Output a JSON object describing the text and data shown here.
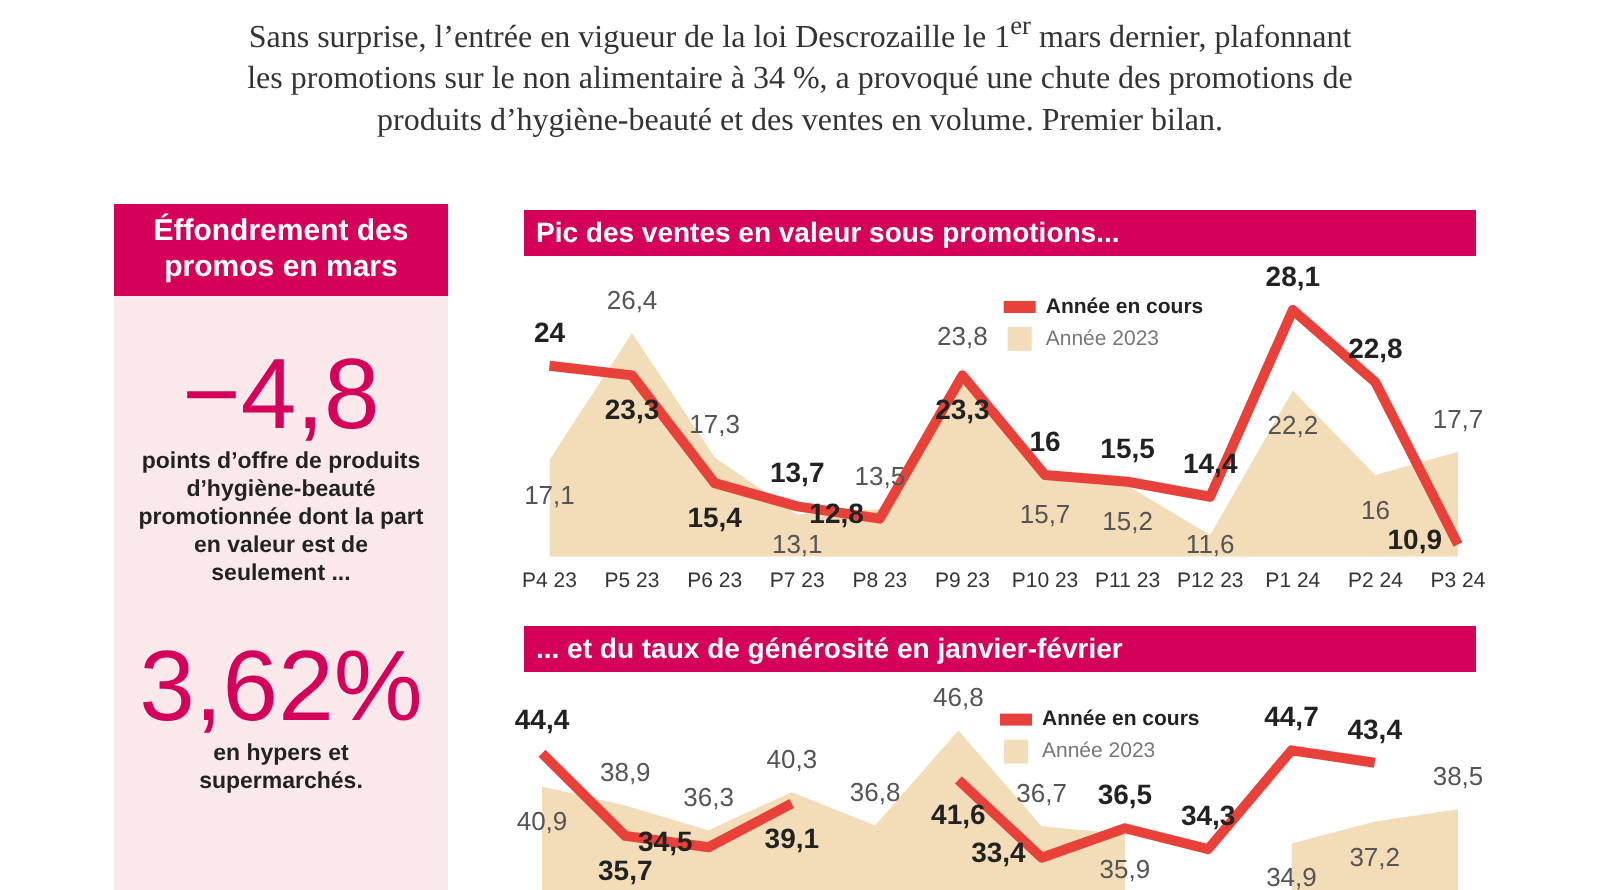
{
  "chart_data": [
    {
      "type": "other",
      "annotations": [
        "Sans surprise, l’entrée en vigueur de la loi Descrozaille le 1$^{er}$ mars dernier, plafonnant les promotions sur le non alimentaire à 34 %, a provoqué une chute des promotions de produits d’hygiène-beauté et des ventes en volume. Premier bilan."
      ]
    },
    {
      "type": "other",
      "title": "Éffondrement des promos en mars",
      "annotations": [
        "−4,8",
        "points d’offre de produits d’hygiène-beauté promotionnée dont la part en valeur est de seulement ...",
        "3,62%",
        "en hypers et supermarchés."
      ]
    },
    {
      "type": "line",
      "title": "Pic des ventes en valeur sous promotions...",
      "categories": [
        "P4 23",
        "P5 23",
        "P6 23",
        "P7 23",
        "P8 23",
        "P9 23",
        "P10 23",
        "P11 23",
        "P12 23",
        "P1 24",
        "P2 24",
        "P3 24"
      ],
      "series": [
        {
          "name": "Année en cours",
          "type": "line",
          "color": "#e8413a",
          "values": [
            24,
            23.3,
            15.4,
            13.7,
            12.8,
            23.3,
            16,
            15.5,
            14.4,
            28.1,
            22.8,
            10.9
          ],
          "value_labels": [
            "24",
            "23,3",
            "15,4",
            "13,7",
            "12,8",
            "23,3",
            "16",
            "15,5",
            "14,4",
            "28,1",
            "22,8",
            "10,9"
          ]
        },
        {
          "name": "Année 2023",
          "type": "area",
          "color": "#f3dcb8",
          "values": [
            17.1,
            26.4,
            17.3,
            13.1,
            13.5,
            23.8,
            15.7,
            15.2,
            11.6,
            22.2,
            16,
            17.7
          ],
          "value_labels": [
            "17,1",
            "26,4",
            "17,3",
            "13,1",
            "13,5",
            "23,8",
            "15,7",
            "15,2",
            "11,6",
            "22,2",
            "16",
            "17,7"
          ]
        }
      ],
      "legend": "top",
      "tick_labels": "x"
    },
    {
      "type": "line",
      "title": "... et du taux de générosité en janvier-février",
      "categories": [
        null,
        null,
        null,
        null,
        null,
        null,
        null,
        null,
        null,
        null,
        null,
        null
      ],
      "series": [
        {
          "name": "Année en cours",
          "type": "line",
          "color": "#e8413a",
          "values": [
            44.4,
            35.7,
            34.5,
            39.1,
            null,
            41.6,
            33.4,
            36.5,
            34.3,
            44.7,
            43.4,
            null
          ],
          "value_labels": [
            "44,4",
            "35,7",
            "34,5",
            "39,1",
            null,
            "41,6",
            "33,4",
            "36,5",
            "34,3",
            "44,7",
            "43,4",
            null
          ]
        },
        {
          "name": "Année 2023",
          "type": "area",
          "color": "#f3dcb8",
          "values": [
            40.9,
            38.9,
            36.3,
            40.3,
            36.8,
            46.8,
            36.7,
            35.9,
            null,
            34.9,
            37.2,
            38.5
          ],
          "value_labels": [
            "40,9",
            "38,9",
            "36,3",
            "40,3",
            "36,8",
            "46,8",
            "36,7",
            "35,9",
            null,
            "34,9",
            "37,2",
            "38,5"
          ]
        }
      ],
      "legend": "top",
      "tick_labels": false
    }
  ]
}
